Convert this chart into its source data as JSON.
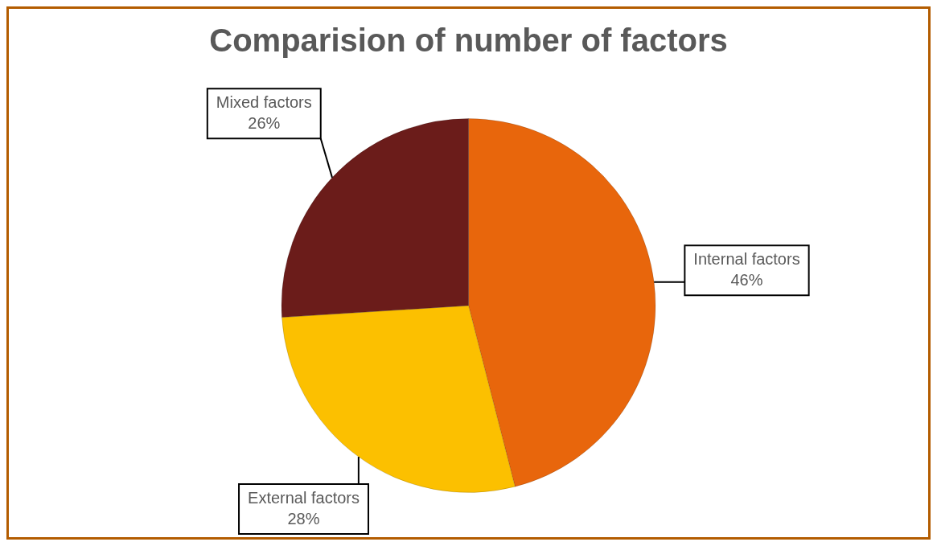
{
  "chart_data": {
    "type": "pie",
    "title": "Comparision of number of factors",
    "categories": [
      "Internal factors",
      "External factors",
      "Mixed factors"
    ],
    "values": [
      46,
      28,
      26
    ],
    "colors": [
      "#e8660c",
      "#fcc000",
      "#6b1c1a"
    ],
    "value_labels": [
      "46%",
      "28%",
      "26%"
    ],
    "legend": false
  }
}
